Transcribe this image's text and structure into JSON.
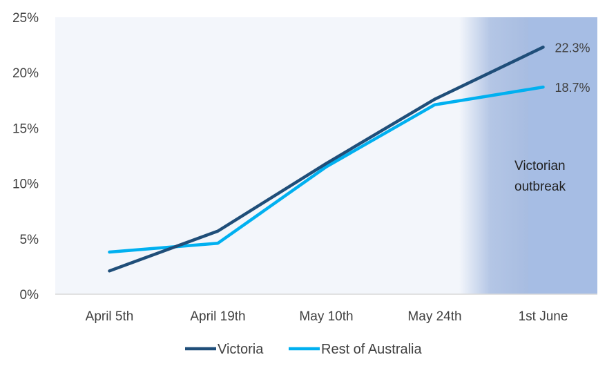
{
  "chart_data": {
    "type": "line",
    "categories": [
      "April 5th",
      "April 19th",
      "May 10th",
      "May 24th",
      "1st June"
    ],
    "series": [
      {
        "name": "Victoria",
        "values": [
          2.1,
          5.7,
          11.8,
          17.6,
          22.3
        ],
        "color": "#1f4e79"
      },
      {
        "name": "Rest of Australia",
        "values": [
          3.8,
          4.6,
          11.5,
          17.1,
          18.7
        ],
        "color": "#00b0f0"
      }
    ],
    "ylim": [
      0,
      25
    ],
    "yticks": [
      0,
      5,
      10,
      15,
      20,
      25
    ],
    "ytick_labels": [
      "0%",
      "5%",
      "10%",
      "15%",
      "20%",
      "25%"
    ],
    "data_labels": [
      "22.3%",
      "18.7%"
    ],
    "annotation": {
      "line1": "Victorian",
      "line2": "outbreak"
    },
    "legend": {
      "position": "bottom",
      "items": [
        "Victoria",
        "Rest of Australia"
      ]
    },
    "colors": {
      "plot_bg": "#f3f6fb",
      "shade": "#9fb6de"
    }
  }
}
